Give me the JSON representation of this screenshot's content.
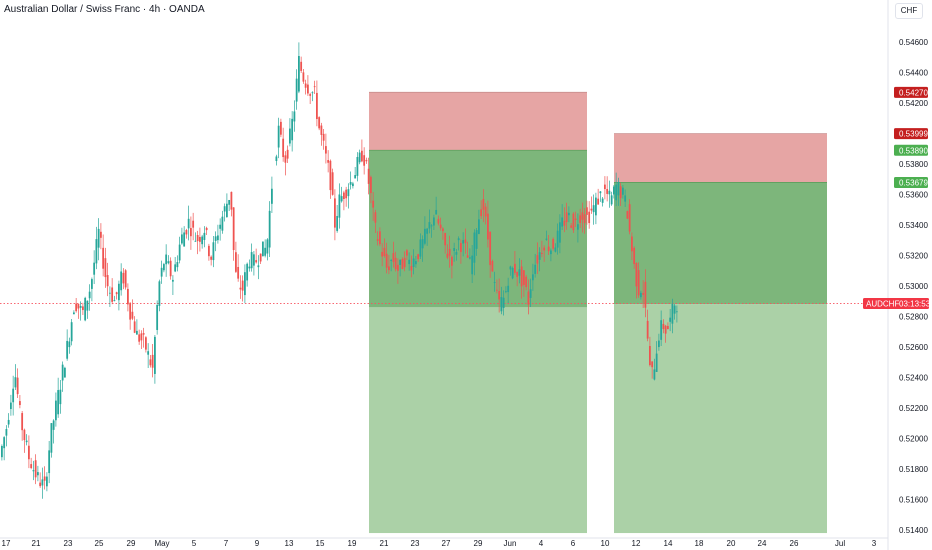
{
  "header": {
    "title": "Australian Dollar / Swiss Franc · 4h · OANDA",
    "currency_button": "CHF"
  },
  "colors": {
    "up": "#26a69a",
    "down": "#ef5350",
    "stop_zone": "#e6a5a4",
    "target_zone": "#7db67b",
    "extended_zone": "#abd1a7",
    "tag_red": "#c41f1f",
    "tag_green": "#4caf50",
    "current_price_line": "#f7525f"
  },
  "chart_data": {
    "type": "candlestick",
    "symbol": "AUDCHF",
    "y_ticks": [
      "0.54600",
      "0.54400",
      "0.54200",
      "0.53800",
      "0.53600",
      "0.53400",
      "0.53200",
      "0.53000",
      "0.52800",
      "0.52600",
      "0.52400",
      "0.52200",
      "0.52000",
      "0.51800",
      "0.51600",
      "0.51400"
    ],
    "x_ticks": [
      "17",
      "21",
      "23",
      "25",
      "29",
      "May",
      "5",
      "7",
      "9",
      "13",
      "15",
      "19",
      "21",
      "23",
      "27",
      "29",
      "Jun",
      "4",
      "6",
      "10",
      "12",
      "14",
      "18",
      "20",
      "24",
      "26",
      "Jul",
      "3"
    ],
    "price_tags": [
      {
        "label": "0.54270",
        "value": 0.5427,
        "color": "red"
      },
      {
        "label": "0.53999",
        "value": 0.53999,
        "color": "red"
      },
      {
        "label": "0.53890",
        "value": 0.5389,
        "color": "green"
      },
      {
        "label": "0.53679",
        "value": 0.53679,
        "color": "green"
      }
    ],
    "current_price": {
      "symbol": "AUDCHF",
      "countdown": "03:13:53",
      "value": 0.52885
    },
    "positions": [
      {
        "type": "short",
        "entry": 0.5389,
        "stop": 0.5427,
        "target": 0.5286,
        "extended_target": 0.5138
      },
      {
        "type": "short",
        "entry": 0.53679,
        "stop": 0.53999,
        "target": 0.5288,
        "extended_target": 0.5138
      }
    ],
    "price_path": [
      [
        0,
        0.5185
      ],
      [
        8,
        0.5208
      ],
      [
        16,
        0.5245
      ],
      [
        22,
        0.5212
      ],
      [
        30,
        0.5188
      ],
      [
        38,
        0.5175
      ],
      [
        46,
        0.5168
      ],
      [
        52,
        0.5202
      ],
      [
        60,
        0.523
      ],
      [
        68,
        0.5258
      ],
      [
        76,
        0.529
      ],
      [
        84,
        0.5282
      ],
      [
        92,
        0.53
      ],
      [
        100,
        0.5335
      ],
      [
        108,
        0.5302
      ],
      [
        116,
        0.529
      ],
      [
        124,
        0.5308
      ],
      [
        132,
        0.5282
      ],
      [
        138,
        0.5268
      ],
      [
        146,
        0.5262
      ],
      [
        154,
        0.5245
      ],
      [
        160,
        0.53
      ],
      [
        166,
        0.5318
      ],
      [
        174,
        0.5305
      ],
      [
        182,
        0.533
      ],
      [
        190,
        0.5342
      ],
      [
        198,
        0.533
      ],
      [
        206,
        0.5338
      ],
      [
        212,
        0.5318
      ],
      [
        220,
        0.5338
      ],
      [
        226,
        0.535
      ],
      [
        232,
        0.5362
      ],
      [
        236,
        0.531
      ],
      [
        240,
        0.53
      ],
      [
        244,
        0.5298
      ],
      [
        250,
        0.5318
      ],
      [
        256,
        0.5315
      ],
      [
        262,
        0.5322
      ],
      [
        268,
        0.5325
      ],
      [
        274,
        0.5372
      ],
      [
        280,
        0.5402
      ],
      [
        286,
        0.5382
      ],
      [
        290,
        0.5392
      ],
      [
        296,
        0.5418
      ],
      [
        300,
        0.5448
      ],
      [
        304,
        0.5438
      ],
      [
        310,
        0.543
      ],
      [
        316,
        0.5425
      ],
      [
        320,
        0.5405
      ],
      [
        326,
        0.5388
      ],
      [
        332,
        0.5368
      ],
      [
        336,
        0.534
      ],
      [
        340,
        0.5355
      ],
      [
        346,
        0.5362
      ],
      [
        352,
        0.5368
      ],
      [
        358,
        0.5378
      ],
      [
        364,
        0.5388
      ],
      [
        368,
        0.5376
      ],
      [
        372,
        0.536
      ],
      [
        376,
        0.5338
      ],
      [
        382,
        0.5325
      ],
      [
        388,
        0.5312
      ],
      [
        394,
        0.5318
      ],
      [
        400,
        0.531
      ],
      [
        406,
        0.5318
      ],
      [
        412,
        0.5315
      ],
      [
        418,
        0.532
      ],
      [
        424,
        0.5328
      ],
      [
        430,
        0.5338
      ],
      [
        436,
        0.5348
      ],
      [
        442,
        0.5336
      ],
      [
        448,
        0.5322
      ],
      [
        454,
        0.5318
      ],
      [
        460,
        0.533
      ],
      [
        466,
        0.5325
      ],
      [
        472,
        0.5312
      ],
      [
        478,
        0.534
      ],
      [
        484,
        0.5355
      ],
      [
        490,
        0.5328
      ],
      [
        494,
        0.5305
      ],
      [
        500,
        0.5288
      ],
      [
        506,
        0.5292
      ],
      [
        510,
        0.5308
      ],
      [
        516,
        0.5312
      ],
      [
        522,
        0.5306
      ],
      [
        526,
        0.53
      ],
      [
        530,
        0.529
      ],
      [
        534,
        0.5312
      ],
      [
        540,
        0.532
      ],
      [
        546,
        0.533
      ],
      [
        552,
        0.5325
      ],
      [
        558,
        0.533
      ],
      [
        564,
        0.5342
      ],
      [
        570,
        0.5345
      ],
      [
        576,
        0.534
      ],
      [
        582,
        0.5348
      ],
      [
        588,
        0.5345
      ],
      [
        594,
        0.535
      ],
      [
        600,
        0.5358
      ],
      [
        606,
        0.5362
      ],
      [
        612,
        0.5356
      ],
      [
        618,
        0.5366
      ],
      [
        624,
        0.536
      ],
      [
        628,
        0.5352
      ],
      [
        632,
        0.533
      ],
      [
        636,
        0.531
      ],
      [
        640,
        0.5298
      ],
      [
        644,
        0.53
      ],
      [
        648,
        0.5275
      ],
      [
        652,
        0.5238
      ],
      [
        656,
        0.525
      ],
      [
        660,
        0.5268
      ],
      [
        664,
        0.5275
      ],
      [
        668,
        0.527
      ],
      [
        672,
        0.5278
      ],
      [
        676,
        0.5289
      ]
    ]
  }
}
